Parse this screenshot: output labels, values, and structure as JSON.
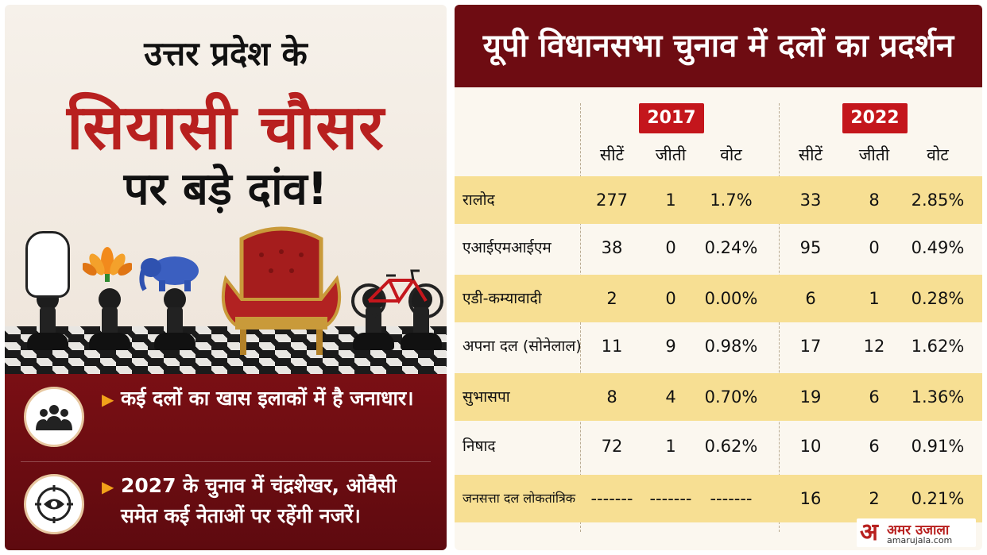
{
  "left": {
    "headline_line1": "उत्तर प्रदेश के",
    "headline_line2": "सियासी चौसर",
    "headline_line3": "पर बड़े दांव!",
    "points": [
      {
        "icon": "group-people-icon",
        "text": "कई दलों का खास इलाकों में है जनाधार।"
      },
      {
        "icon": "eye-target-icon",
        "text": "2027 के चुनाव में चंद्रशेखर, ओवैसी समेत कई नेताओं पर रहेंगी नजरें।"
      }
    ]
  },
  "right": {
    "title": "यूपी विधानसभा चुनाव में दलों का प्रदर्शन",
    "years": [
      "2017",
      "2022"
    ],
    "columns": [
      "सीटें",
      "जीती",
      "वोट"
    ],
    "rows": [
      {
        "party": "रालोद",
        "y2017": [
          "277",
          "1",
          "1.7%"
        ],
        "y2022": [
          "33",
          "8",
          "2.85%"
        ]
      },
      {
        "party": "एआईएमआईएम",
        "y2017": [
          "38",
          "0",
          "0.24%"
        ],
        "y2022": [
          "95",
          "0",
          "0.49%"
        ]
      },
      {
        "party": "एडी-कम्यावादी",
        "y2017": [
          "2",
          "0",
          "0.00%"
        ],
        "y2022": [
          "6",
          "1",
          "0.28%"
        ]
      },
      {
        "party": "अपना दल (सोनेलाल)",
        "y2017": [
          "11",
          "9",
          "0.98%"
        ],
        "y2022": [
          "17",
          "12",
          "1.62%"
        ]
      },
      {
        "party": "सुभासपा",
        "y2017": [
          "8",
          "4",
          "0.70%"
        ],
        "y2022": [
          "19",
          "6",
          "1.36%"
        ]
      },
      {
        "party": "निषाद",
        "y2017": [
          "72",
          "1",
          "0.62%"
        ],
        "y2022": [
          "10",
          "6",
          "0.91%"
        ]
      },
      {
        "party": "जनसत्ता दल लोकतांत्रिक",
        "y2017": [
          "-------",
          "-------",
          "-------"
        ],
        "y2022": [
          "16",
          "2",
          "0.21%"
        ]
      }
    ]
  },
  "logo": {
    "mark": "अ",
    "name": "अमर उजाला",
    "url": "amarujala.com"
  },
  "colors": {
    "maroon": "#6e0c12",
    "red": "#b8201f",
    "highlight": "#f7df93",
    "accent": "#f2a21a"
  }
}
